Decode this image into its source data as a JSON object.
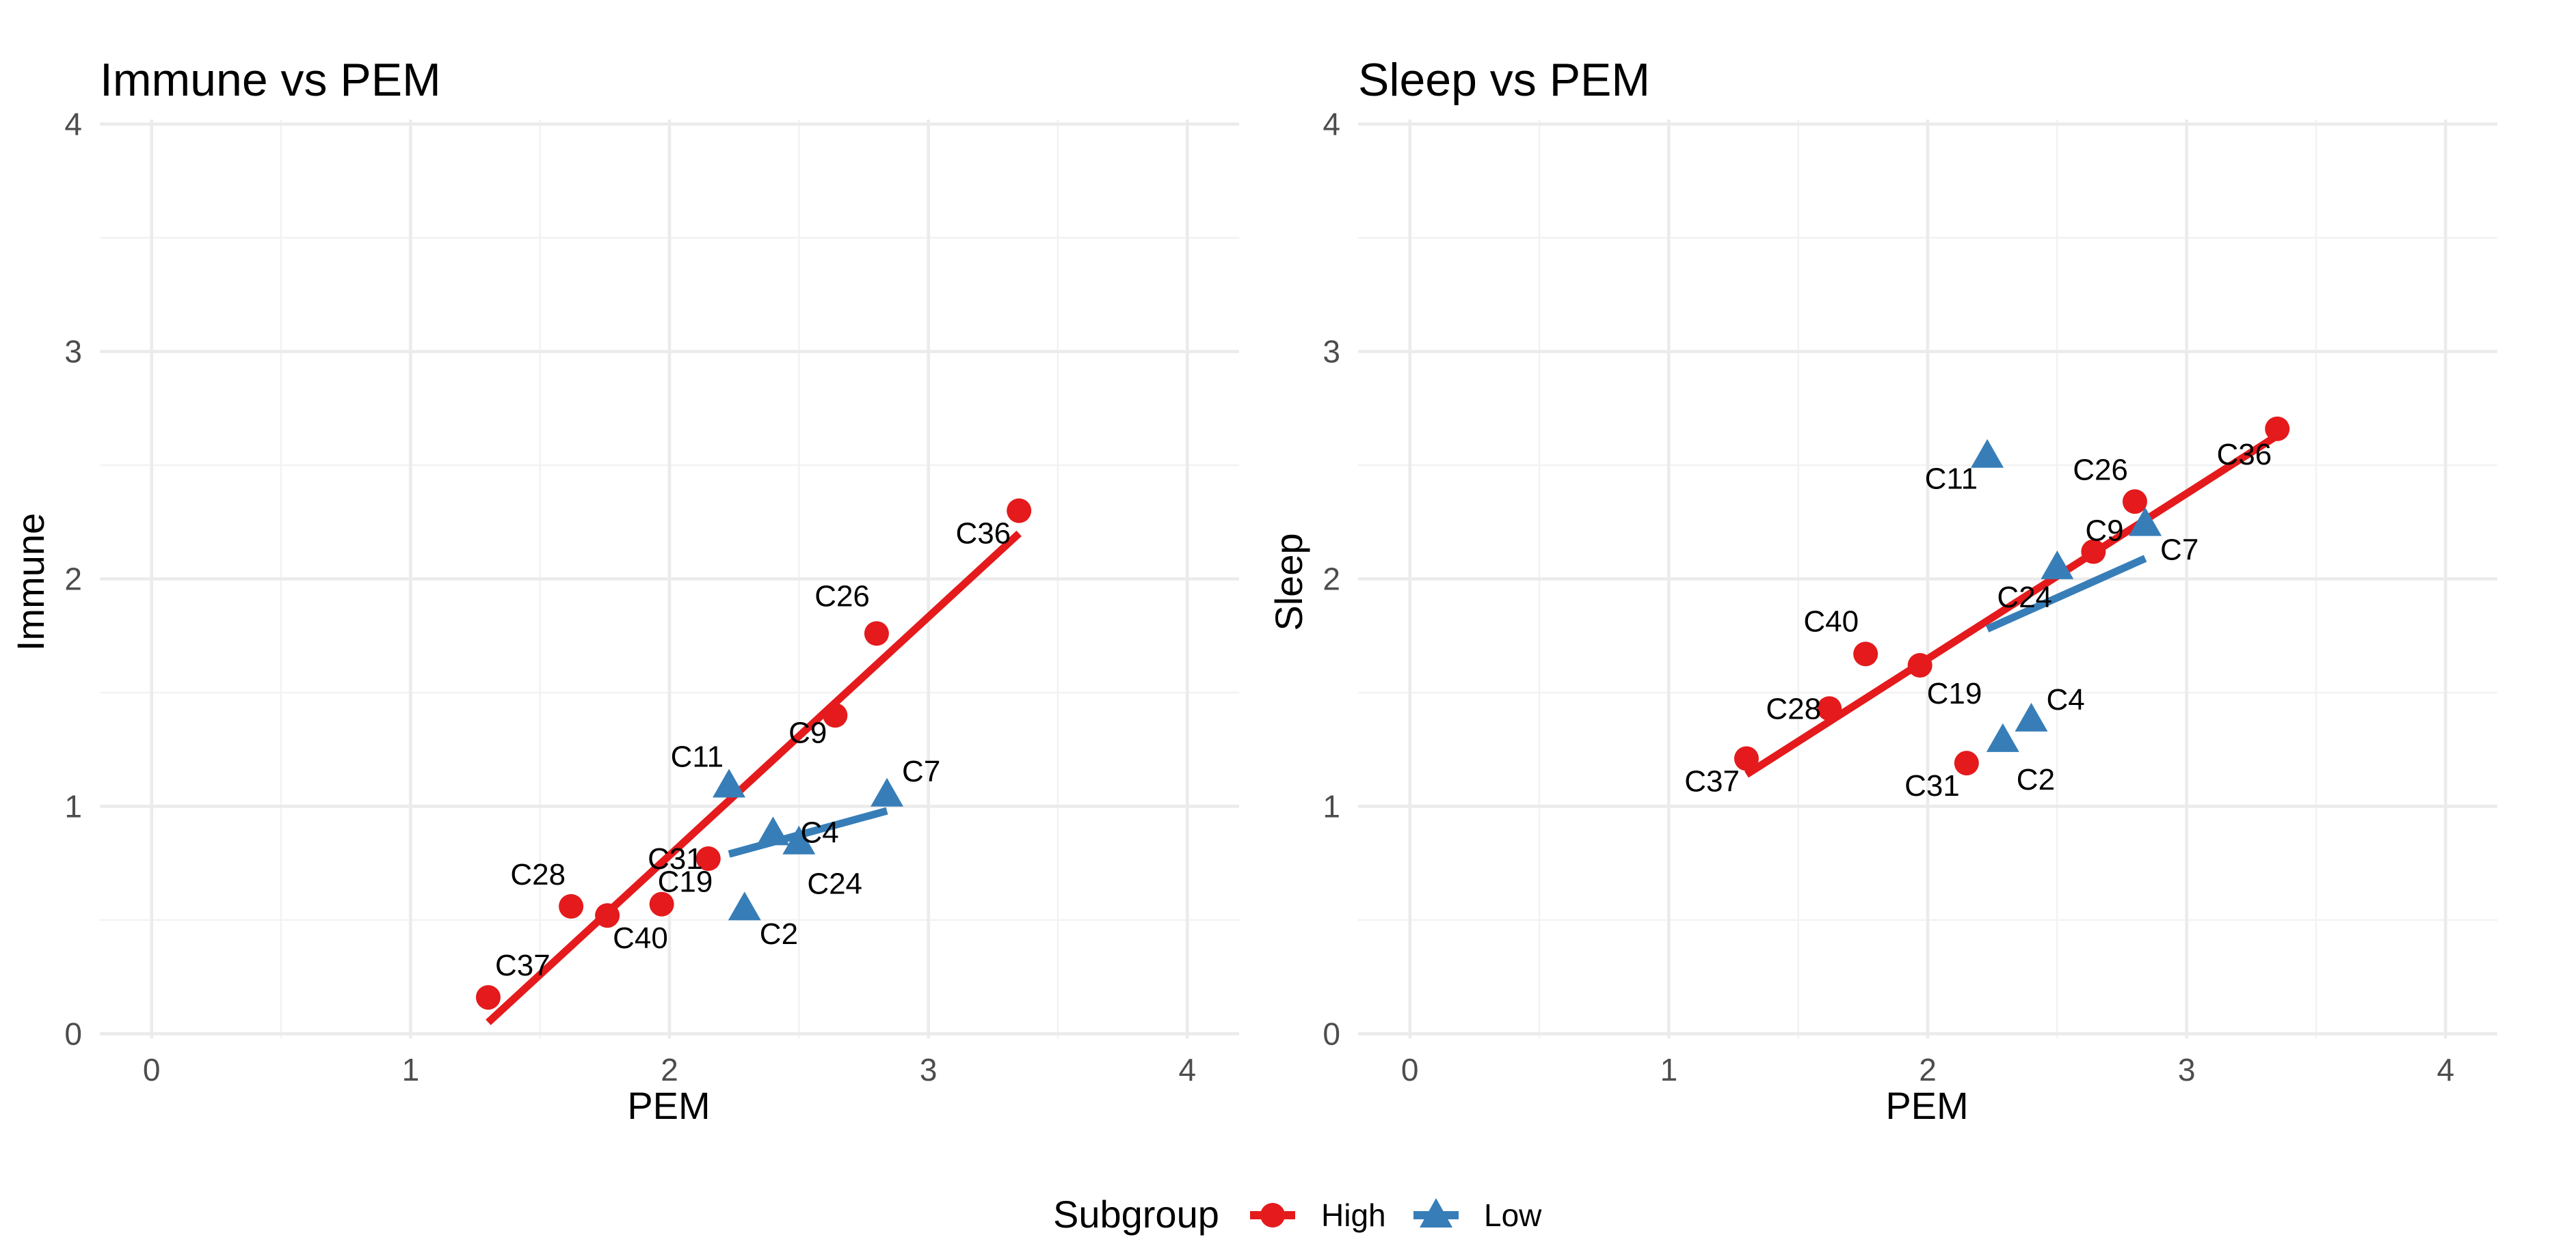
{
  "legend": {
    "title": "Subgroup",
    "placement": "bottom",
    "entries": [
      {
        "name": "High",
        "color": "#e41a1c",
        "shape": "circle"
      },
      {
        "name": "Low",
        "color": "#377eb8",
        "shape": "triangle"
      }
    ]
  },
  "chart_data": [
    {
      "type": "scatter",
      "title": "Immune vs PEM",
      "xlabel": "PEM",
      "ylabel": "Immune",
      "xlim": [
        -0.2,
        4.2
      ],
      "ylim": [
        -0.02,
        4.02
      ],
      "xticks": [
        "0",
        "1",
        "2",
        "3",
        "4"
      ],
      "yticks": [
        "0",
        "1",
        "2",
        "3",
        "4"
      ],
      "grid": true,
      "series": [
        {
          "name": "High",
          "points": [
            {
              "label": "C37",
              "x": 1.3,
              "y": 0.16
            },
            {
              "label": "C28",
              "x": 1.62,
              "y": 0.56
            },
            {
              "label": "C40",
              "x": 1.76,
              "y": 0.52
            },
            {
              "label": "C19",
              "x": 1.97,
              "y": 0.57
            },
            {
              "label": "C31",
              "x": 2.15,
              "y": 0.77
            },
            {
              "label": "C9",
              "x": 2.64,
              "y": 1.4
            },
            {
              "label": "C26",
              "x": 2.8,
              "y": 1.76
            },
            {
              "label": "C36",
              "x": 3.35,
              "y": 2.3
            }
          ],
          "trend": {
            "x": [
              1.3,
              3.35
            ],
            "y": [
              0.05,
              2.2
            ]
          }
        },
        {
          "name": "Low",
          "points": [
            {
              "label": "C11",
              "x": 2.23,
              "y": 1.09
            },
            {
              "label": "C4",
              "x": 2.4,
              "y": 0.88
            },
            {
              "label": "C24",
              "x": 2.5,
              "y": 0.84
            },
            {
              "label": "C2",
              "x": 2.29,
              "y": 0.55
            },
            {
              "label": "C7",
              "x": 2.84,
              "y": 1.05
            }
          ],
          "trend": {
            "x": [
              2.23,
              2.84
            ],
            "y": [
              0.79,
              0.98
            ]
          }
        }
      ]
    },
    {
      "type": "scatter",
      "title": "Sleep vs PEM",
      "xlabel": "PEM",
      "ylabel": "Sleep",
      "xlim": [
        -0.2,
        4.2
      ],
      "ylim": [
        -0.02,
        4.02
      ],
      "xticks": [
        "0",
        "1",
        "2",
        "3",
        "4"
      ],
      "yticks": [
        "0",
        "1",
        "2",
        "3",
        "4"
      ],
      "grid": true,
      "series": [
        {
          "name": "High",
          "points": [
            {
              "label": "C37",
              "x": 1.3,
              "y": 1.21
            },
            {
              "label": "C28",
              "x": 1.62,
              "y": 1.43
            },
            {
              "label": "C40",
              "x": 1.76,
              "y": 1.67
            },
            {
              "label": "C19",
              "x": 1.97,
              "y": 1.62
            },
            {
              "label": "C31",
              "x": 2.15,
              "y": 1.19
            },
            {
              "label": "C9",
              "x": 2.64,
              "y": 2.12
            },
            {
              "label": "C26",
              "x": 2.8,
              "y": 2.34
            },
            {
              "label": "C36",
              "x": 3.35,
              "y": 2.66
            }
          ],
          "trend": {
            "x": [
              1.3,
              3.35
            ],
            "y": [
              1.14,
              2.63
            ]
          }
        },
        {
          "name": "Low",
          "points": [
            {
              "label": "C11",
              "x": 2.23,
              "y": 2.54
            },
            {
              "label": "C24",
              "x": 2.5,
              "y": 2.05
            },
            {
              "label": "C7",
              "x": 2.84,
              "y": 2.24
            },
            {
              "label": "C4",
              "x": 2.4,
              "y": 1.38
            },
            {
              "label": "C2",
              "x": 2.29,
              "y": 1.29
            }
          ],
          "trend": {
            "x": [
              2.23,
              2.84
            ],
            "y": [
              1.78,
              2.09
            ]
          }
        }
      ]
    }
  ]
}
